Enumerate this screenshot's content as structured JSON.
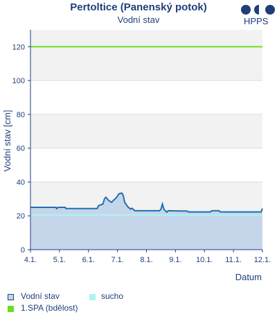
{
  "header": {
    "title": "Pertoltice (Panenský potok)",
    "subtitle": "Vodní stav",
    "logo_text": "HPPS"
  },
  "colors": {
    "water_line": "#1f6fb0",
    "water_fill": "#c5d6ea",
    "drought": "#aef2f2",
    "spa1": "#66e01a",
    "band": "#f2f2f2",
    "text": "#1f3f7a"
  },
  "legend": {
    "water": "Vodní stav",
    "drought": "sucho",
    "spa1": "1.SPA (bdělost)"
  },
  "chart_data": {
    "type": "area",
    "ylabel": "Vodní stav [cm]",
    "xlabel": "Datum",
    "ylim": [
      0,
      130
    ],
    "y_ticks": [
      0,
      20,
      40,
      60,
      80,
      100,
      120
    ],
    "x_ticks": [
      "4.1.",
      "5.1.",
      "6.1.",
      "7.1.",
      "8.1.",
      "9.1.",
      "10.1.",
      "11.1.",
      "12.1."
    ],
    "xlim": [
      0,
      8
    ],
    "series": [
      {
        "name": "Vodní stav",
        "points": [
          [
            0,
            25
          ],
          [
            0.88,
            25
          ],
          [
            0.9,
            24.3
          ],
          [
            0.95,
            25
          ],
          [
            1.2,
            25
          ],
          [
            1.22,
            24.3
          ],
          [
            2.3,
            24.3
          ],
          [
            2.35,
            26
          ],
          [
            2.5,
            27
          ],
          [
            2.55,
            30
          ],
          [
            2.6,
            31
          ],
          [
            2.7,
            29
          ],
          [
            2.8,
            28
          ],
          [
            2.85,
            29
          ],
          [
            2.95,
            30.5
          ],
          [
            3.05,
            33
          ],
          [
            3.15,
            33.5
          ],
          [
            3.2,
            32
          ],
          [
            3.25,
            28
          ],
          [
            3.35,
            25.5
          ],
          [
            3.45,
            24
          ],
          [
            3.5,
            24.5
          ],
          [
            3.6,
            23
          ],
          [
            4.45,
            23
          ],
          [
            4.5,
            24
          ],
          [
            4.55,
            27
          ],
          [
            4.6,
            24
          ],
          [
            4.65,
            23
          ],
          [
            4.7,
            22.2
          ],
          [
            4.75,
            23
          ],
          [
            5.4,
            22.8
          ],
          [
            5.45,
            22.3
          ],
          [
            6.2,
            22.3
          ],
          [
            6.25,
            23
          ],
          [
            6.5,
            23
          ],
          [
            6.55,
            22.3
          ],
          [
            7.95,
            22.3
          ],
          [
            8,
            24.3
          ]
        ]
      },
      {
        "name": "sucho",
        "value": 20.5
      },
      {
        "name": "1.SPA (bdělost)",
        "value": 120
      }
    ]
  }
}
